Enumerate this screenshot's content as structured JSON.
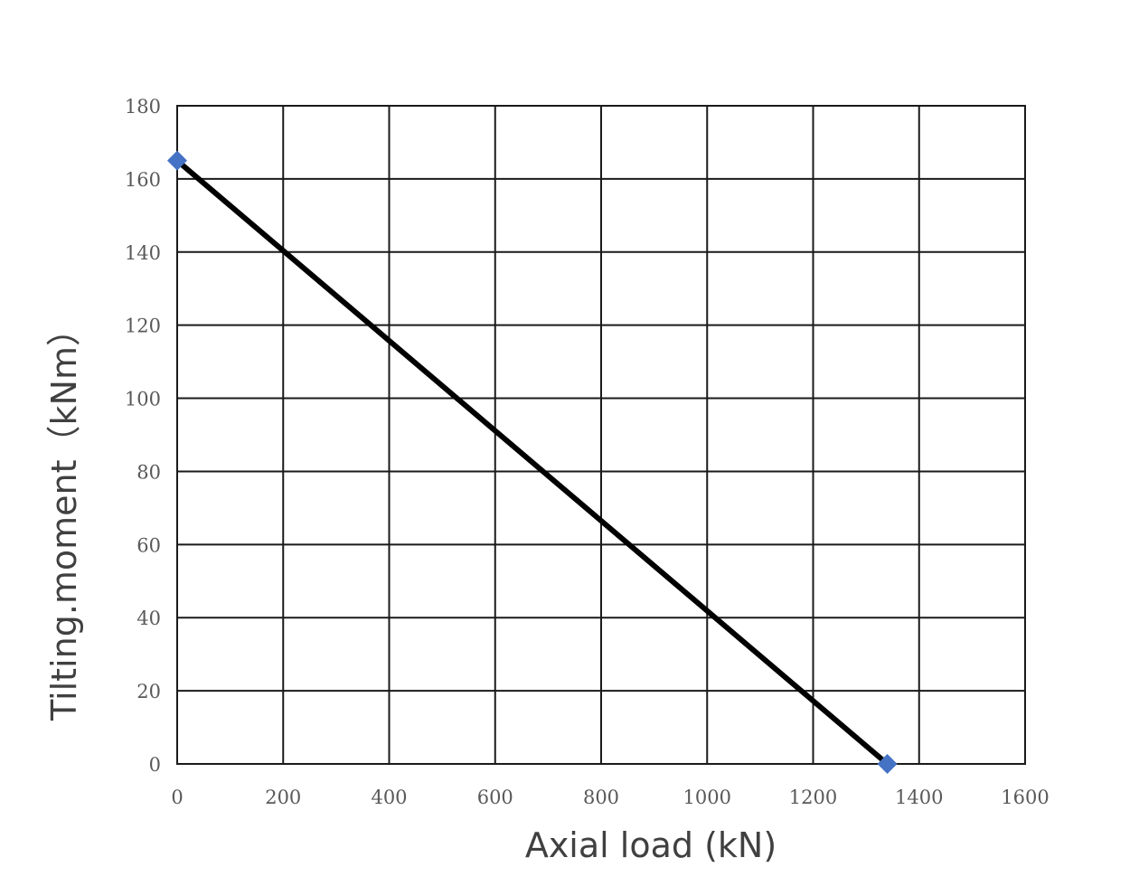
{
  "chart_data": {
    "type": "line",
    "xlabel": "Axial load (kN)",
    "ylabel": "Tilting.moment（kNm）",
    "xlim": [
      0,
      1600
    ],
    "ylim": [
      0,
      180
    ],
    "x_ticks": [
      "0",
      "200",
      "400",
      "600",
      "800",
      "1000",
      "1200",
      "1400",
      "1600"
    ],
    "y_ticks": [
      "0",
      "20",
      "40",
      "60",
      "80",
      "100",
      "120",
      "140",
      "160",
      "180"
    ],
    "grid": true,
    "legend": "none",
    "series": [
      {
        "points": [
          {
            "x": 0,
            "y": 165
          },
          {
            "x": 1340,
            "y": 0
          }
        ],
        "line_color": "#000000",
        "marker": "diamond",
        "marker_color": "#4472c4"
      }
    ]
  }
}
